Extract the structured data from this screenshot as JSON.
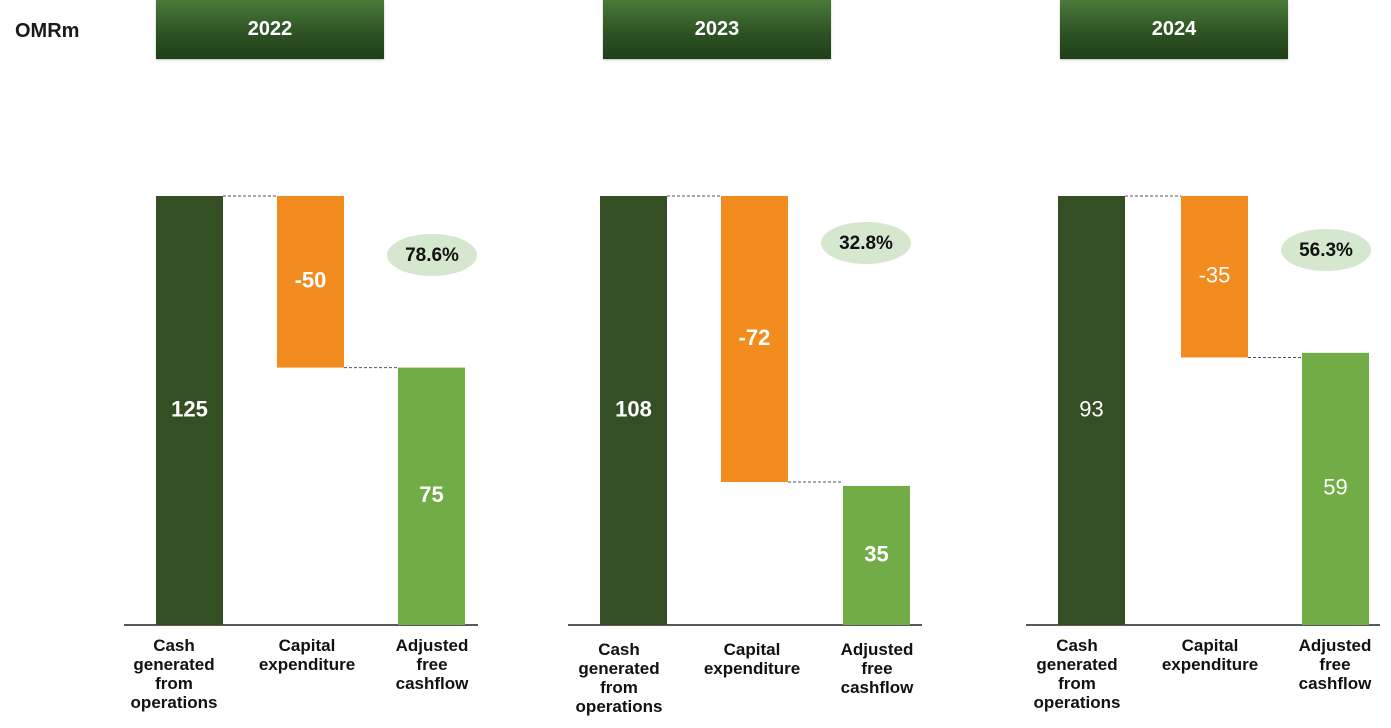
{
  "unit_label": "OMRm",
  "colors": {
    "header": "#2e5324",
    "operations": "#344f24",
    "capex": "#f28c1e",
    "free_cashflow": "#71ac47",
    "pct_bubble": "#d5e8cf",
    "connector": "#555555"
  },
  "chart_data": [
    {
      "type": "bar",
      "title": "2022",
      "categories": [
        "Cash generated from operations",
        "Capital expenditure",
        "Adjusted free cashflow"
      ],
      "values": [
        125,
        -50,
        75
      ],
      "conversion_pct": "78.6%",
      "label_bold": true
    },
    {
      "type": "bar",
      "title": "2023",
      "categories": [
        "Cash generated from operations",
        "Capital expenditure",
        "Adjusted free cashflow"
      ],
      "values": [
        108,
        -72,
        35
      ],
      "conversion_pct": "32.8%",
      "label_bold": true
    },
    {
      "type": "bar",
      "title": "2024",
      "categories": [
        "Cash generated from operations",
        "Capital expenditure",
        "Adjusted free cashflow"
      ],
      "values": [
        93,
        -35,
        59
      ],
      "conversion_pct": "56.3%",
      "label_bold": false
    }
  ]
}
